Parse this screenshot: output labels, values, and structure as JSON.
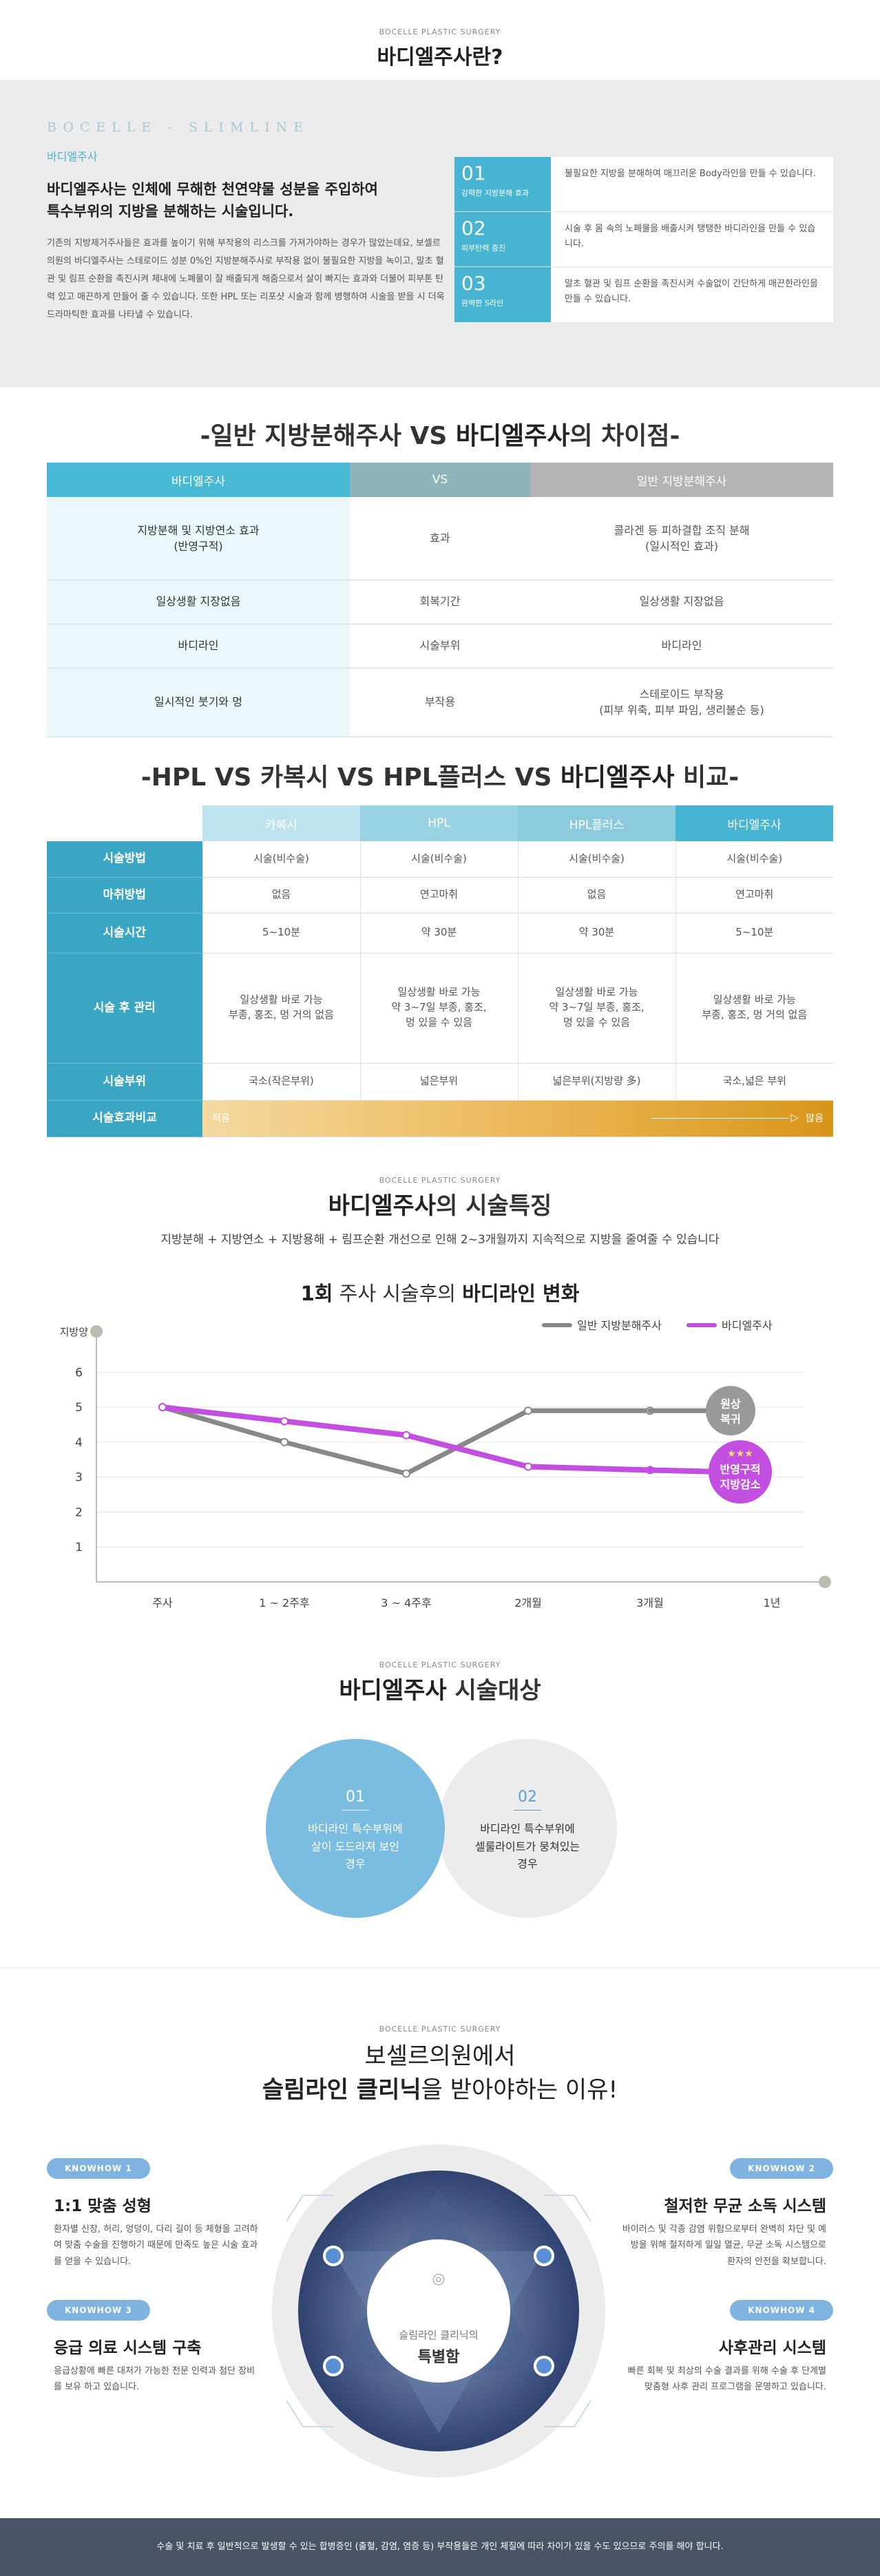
{
  "header": {
    "brand": "BOCELLE PLASTIC SURGERY",
    "title": "바디엘주사란?"
  },
  "intro": {
    "en_title": "BOCELLE - SLIMLINE",
    "subtitle": "바디엘주사",
    "headline_1": "바디엘주사는 인체에 무해한 천연약물 성분을 주입하여",
    "headline_2": "특수부위의 지방을 분해하는 시술입니다.",
    "body": "기존의 지방제거주사들은 효과를 높이기 위해 부작용의 리스크를 가져가야하는 경우가 많았는데요, 보셀르의원의 바디엘주사는 스테로이드 성분 0%인 지방분해주사로 부작용 없이 불필요한 지방을 녹이고, 말초 혈관 및 림프 순환을 촉진시켜 체내에 노폐물이 잘 배출되게 해줌으로서 살이 빠지는 효과와 더불어 피부톤 탄력 있고 매끈하게 만들어 줄 수 있습니다. 또한 HPL 또는 리포샷 시술과 함께 병행하여 시술을 받을 시 더욱 드라마틱한 효과를 나타낼 수 있습니다.",
    "items": [
      {
        "num": "01",
        "label": "강력한 지방분해 효과",
        "text": "불필요한 지방을 분해하여 매끄러운 Body라인을 만들 수 있습니다."
      },
      {
        "num": "02",
        "label": "피부탄력 증진",
        "text": "시술 후 몸 속의 노폐물을 배출시켜 탱탱한 바디라인을 만들 수 있습니다."
      },
      {
        "num": "03",
        "label": "완벽한 S라인",
        "text": "말초 혈관 및 림프 순환을 촉진시켜 수술없이 간단하게 매끈한라인을 만들 수 있습니다."
      }
    ]
  },
  "compare1": {
    "title_pre": "-일반 지방분해주사 VS ",
    "title_bold": "바디엘주사",
    "title_post": "의 차이점-",
    "headers": [
      "바디엘주사",
      "VS",
      "일반 지방분해주사"
    ],
    "rows": [
      {
        "left": "지방분해 및 지방연소 효과\n(반영구적)",
        "mid": "효과",
        "right": "콜라겐 등 피하결합 조직 분해\n(일시적인 효과)"
      },
      {
        "left": "일상생활 지장없음",
        "mid": "회복기간",
        "right": "일상생활 지장없음"
      },
      {
        "left": "바디라인",
        "mid": "시술부위",
        "right": "바디라인"
      },
      {
        "left": "일시적인 붓기와 멍",
        "mid": "부작용",
        "right": "스테로이드 부작용\n(피부 위축, 피부 파임, 생리불순 등)"
      }
    ]
  },
  "compare2": {
    "title_pre": "-HPL VS 카복시 VS HPL플러스 VS ",
    "title_bold": "바디엘주사",
    "title_post": " 비교-",
    "headers": [
      "카복시",
      "HPL",
      "HPL플러스",
      "바디엘주사"
    ],
    "rows": [
      {
        "label": "시술방법",
        "cells": [
          "시술(비수술)",
          "시술(비수술)",
          "시술(비수술)",
          "시술(비수술)"
        ]
      },
      {
        "label": "마취방법",
        "cells": [
          "없음",
          "연고마취",
          "없음",
          "연고마취"
        ]
      },
      {
        "label": "시술시간",
        "cells": [
          "5~10분",
          "약 30분",
          "약 30분",
          "5~10분"
        ]
      },
      {
        "label": "시술 후 관리",
        "cells": [
          "일상생활 바로 가능\n부종, 홍조, 멍 거의 없음",
          "일상생활 바로 가능\n약 3~7일 부종, 홍조,\n멍 있을 수 있음",
          "일상생활 바로 가능\n약 3~7일 부종, 홍조,\n멍 있을 수 있음",
          "일상생활 바로 가능\n부종, 홍조, 멍 거의 없음"
        ]
      },
      {
        "label": "시술부위",
        "cells": [
          "국소(작은부위)",
          "넓은부위",
          "넓은부위(지방량 多)",
          "국소,넓은 부위"
        ]
      }
    ],
    "effect_label": "시술효과비교",
    "effect_low": "적음",
    "effect_high": "많음"
  },
  "feature": {
    "brand": "BOCELLE PLASTIC SURGERY",
    "title_bold": "바디엘주사",
    "title_post": "의 시술특징",
    "subtitle": "지방분해 + 지방연소 + 지방용해 + 림프순환 개선으로 인해 2~3개월까지 지속적으로 지방을 줄여줄 수 있습니다",
    "chart_title_pre": "1회",
    "chart_title_mid": " 주사 시술후의 ",
    "chart_title_bold": "바디라인 변화"
  },
  "chart_data": {
    "type": "line",
    "ylabel": "지방양",
    "categories": [
      "주사",
      "1 ~ 2주후",
      "3 ~ 4주후",
      "2개월",
      "3개월",
      "1년"
    ],
    "ylim": [
      0,
      6.5
    ],
    "yticks": [
      1,
      2,
      3,
      4,
      5,
      6
    ],
    "legend_position": "top-right",
    "grid": true,
    "series": [
      {
        "name": "일반 지방분해주사",
        "color": "#888888",
        "values": [
          5,
          4,
          3.1,
          4.9,
          4.9,
          4.9
        ]
      },
      {
        "name": "바디엘주사",
        "color": "#c34fe0",
        "values": [
          5,
          4.6,
          4.2,
          3.3,
          3.2,
          3.15
        ]
      }
    ],
    "annotations": [
      {
        "text_1": "원상",
        "text_2": "복귀",
        "color": "#999999"
      },
      {
        "stars": "★★★",
        "text_1": "반영구적",
        "text_2": "지방감소",
        "color": "#c34fe0"
      }
    ]
  },
  "target": {
    "brand": "BOCELLE PLASTIC SURGERY",
    "title_bold": "바디엘주사",
    "title_post": " 시술대상",
    "items": [
      {
        "num": "01",
        "text_1": "바디라인 특수부위에",
        "text_2": "살이 도드라져 보인",
        "text_3": "경우"
      },
      {
        "num": "02",
        "text_1": "바디라인 특수부위에",
        "text_2": "셀룰라이트가 뭉쳐있는",
        "text_3": "경우"
      }
    ]
  },
  "reason": {
    "brand": "BOCELLE PLASTIC SURGERY",
    "title_1": "보셀르의원에서",
    "title_2_bold": "슬림라인 클리닉",
    "title_2_post": "을 받아야하는 이유!",
    "center_1": "슬림라인 클리닉의",
    "center_2": "특별함",
    "items": [
      {
        "badge": "KNOWHOW 1",
        "title": "1:1 맞춤 성형",
        "text": "환자별 신장, 허리, 엉덩이, 다리 길이 등 체형을 고려하여 맞춤 수술을 진행하기 때문에 만족도 높은 시술 효과를 얻을 수 있습니다."
      },
      {
        "badge": "KNOWHOW 2",
        "title": "철저한 무균 소독 시스템",
        "text": "바이러스 및 각종 감염 위험으로부터 완벽히 차단 및 예방을 위해 철저하게 일일 멸균, 무균 소독 시스템으로 환자의 안전을 확보합니다."
      },
      {
        "badge": "KNOWHOW 3",
        "title": "응급 의료 시스템 구축",
        "text": "응급상황에 빠른 대처가 가능한 전문 인력과 첨단 장비를 보유 하고 있습니다."
      },
      {
        "badge": "KNOWHOW 4",
        "title": "사후관리 시스템",
        "text": "빠른 회복 및 최상의 수술 결과를 위해 수술 후 단계별 맞춤형 사후 관리 프로그램을 운영하고 있습니다."
      }
    ]
  },
  "footer": {
    "text": "수술 및 치료 후 일반적으로 발생할 수 있는 합병증인 (출혈, 감염, 염증 등) 부작용들은 개인 체질에 따라 차이가 있을 수도 있으므로 주의를 해야 합니다."
  }
}
